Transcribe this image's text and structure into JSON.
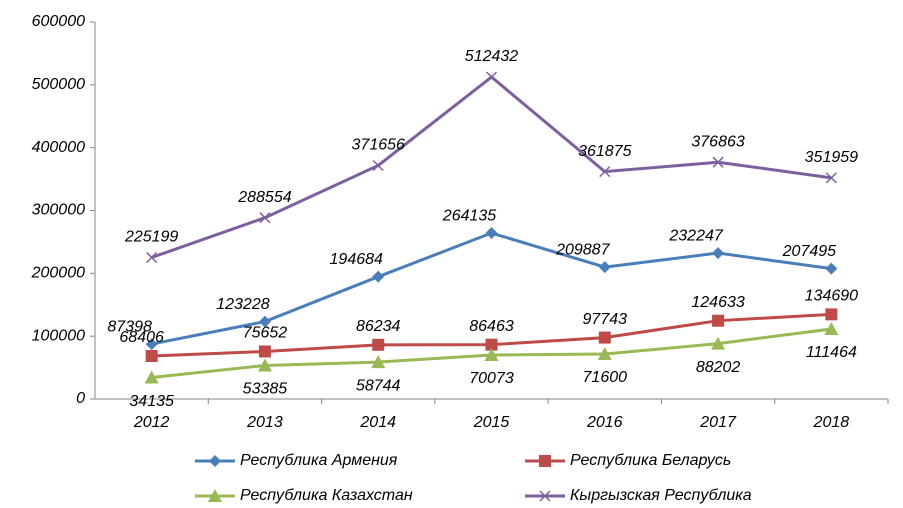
{
  "chart_data": {
    "type": "line",
    "categories": [
      "2012",
      "2013",
      "2014",
      "2015",
      "2016",
      "2017",
      "2018"
    ],
    "series": [
      {
        "name": "Республика Армения",
        "color": "#4a7ebb",
        "marker": "diamond",
        "values": [
          87398,
          123228,
          194684,
          264135,
          209887,
          232247,
          207495
        ]
      },
      {
        "name": "Республика Беларусь",
        "color": "#be4b48",
        "marker": "square",
        "values": [
          68406,
          75652,
          86234,
          86463,
          97743,
          124633,
          134690
        ]
      },
      {
        "name": "Республика Казахстан",
        "color": "#98b954",
        "marker": "triangle",
        "values": [
          34135,
          53385,
          58744,
          70073,
          71600,
          88202,
          111464
        ]
      },
      {
        "name": "Кыргызская Республика",
        "color": "#7d5fa0",
        "marker": "x",
        "values": [
          225199,
          288554,
          371656,
          512432,
          361875,
          376863,
          351959
        ]
      }
    ],
    "ylim": [
      0,
      600000
    ],
    "yticks": [
      0,
      100000,
      200000,
      300000,
      400000,
      500000,
      600000
    ],
    "grid": false,
    "legend": "bottom"
  }
}
